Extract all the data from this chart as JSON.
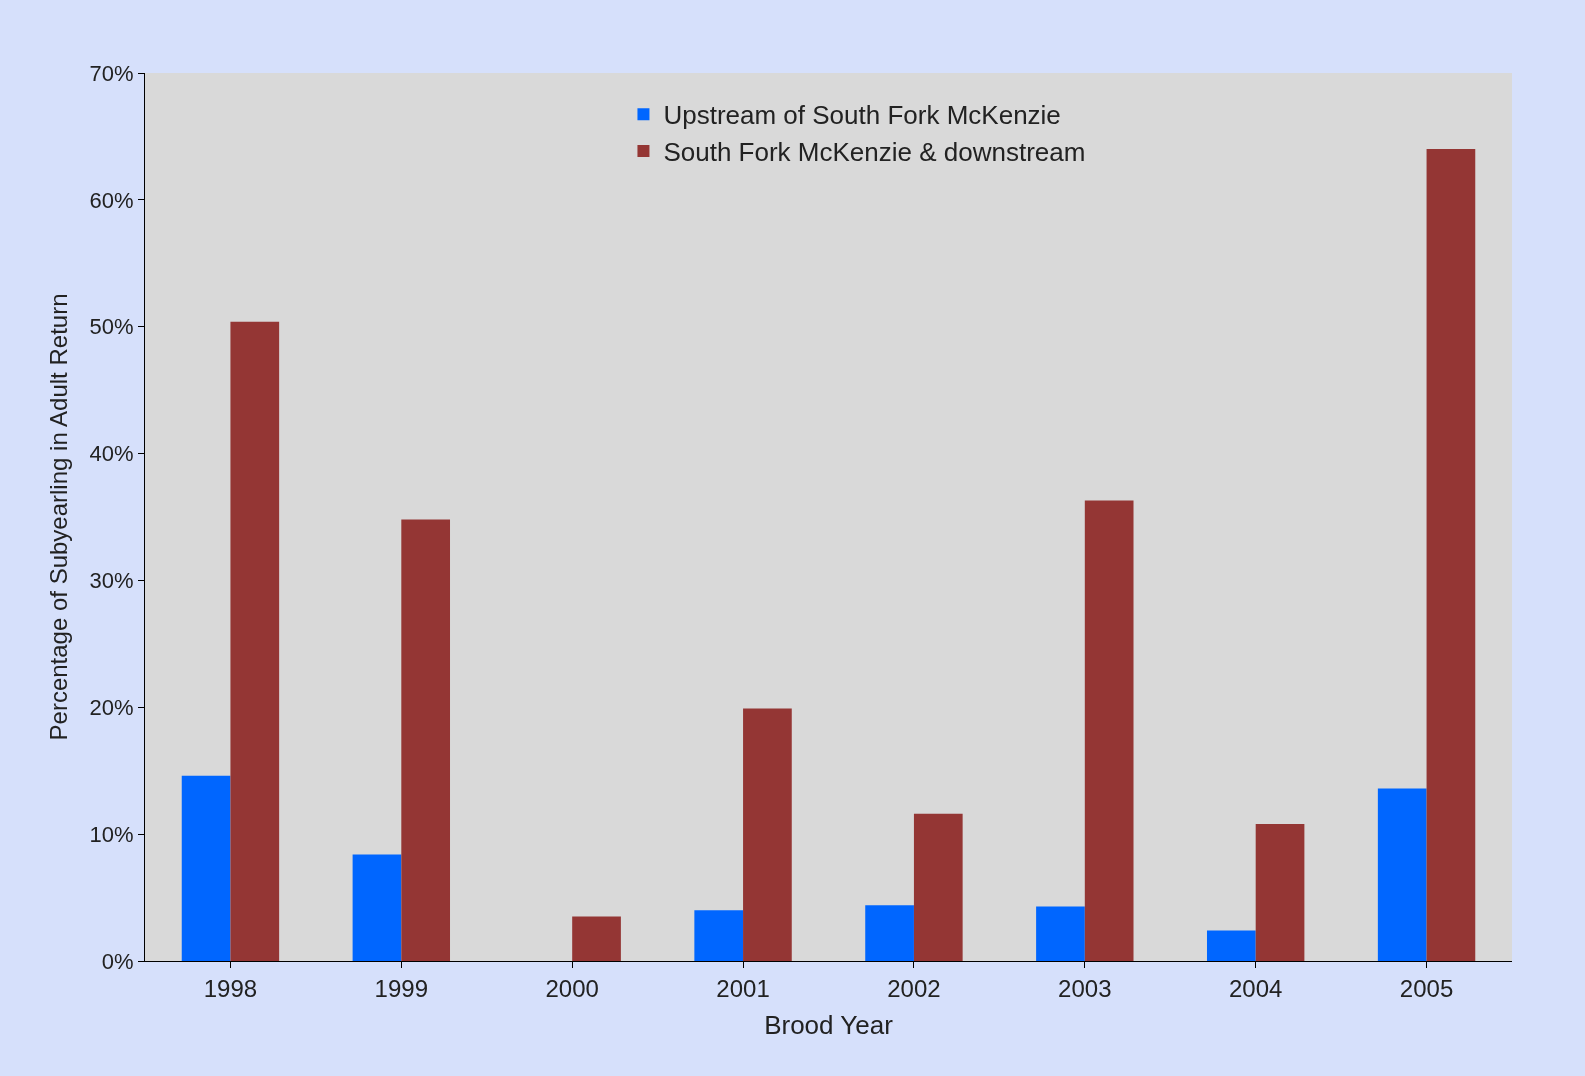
{
  "chart_data": {
    "type": "bar",
    "xlabel": "Brood Year",
    "ylabel": "Percentage of Subyearling in Adult Return",
    "categories": [
      "1998",
      "1999",
      "2000",
      "2001",
      "2002",
      "2003",
      "2004",
      "2005"
    ],
    "series": [
      {
        "name": "Upstream of South Fork McKenzie",
        "color": "#0066ff",
        "values": [
          14.6,
          8.4,
          0,
          4.0,
          4.4,
          4.3,
          2.4,
          13.6
        ]
      },
      {
        "name": "South Fork McKenzie & downstream",
        "color": "#943634",
        "values": [
          50.4,
          34.8,
          3.5,
          19.9,
          11.6,
          36.3,
          10.8,
          64.0
        ]
      }
    ],
    "ylim": [
      0,
      70
    ],
    "yticks": [
      {
        "value": 0,
        "label": "0%"
      },
      {
        "value": 10,
        "label": "10%"
      },
      {
        "value": 20,
        "label": "20%"
      },
      {
        "value": 30,
        "label": "30%"
      },
      {
        "value": 40,
        "label": "40%"
      },
      {
        "value": 50,
        "label": "50%"
      },
      {
        "value": 60,
        "label": "60%"
      },
      {
        "value": 70,
        "label": "70%"
      }
    ],
    "grid": false,
    "legend": "top"
  }
}
